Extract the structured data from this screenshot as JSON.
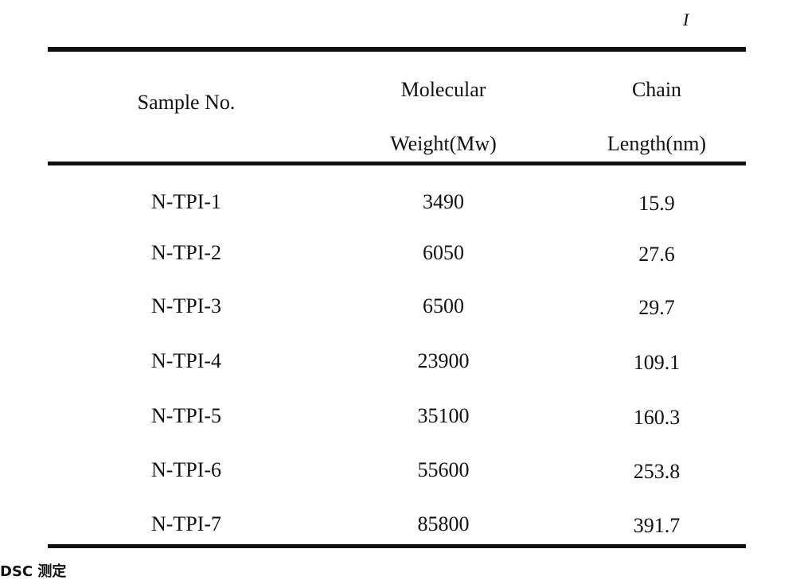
{
  "page_mark": "I",
  "table": {
    "headers": {
      "sample": "Sample No.",
      "mw_line1": "Molecular",
      "mw_line2": "Weight(Mw)",
      "cl_line1": "Chain",
      "cl_line2": "Length(nm)"
    },
    "rows": [
      {
        "sample": "N-TPI-1",
        "mw": "3490",
        "length": "15.9"
      },
      {
        "sample": "N-TPI-2",
        "mw": "6050",
        "length": "27.6"
      },
      {
        "sample": "N-TPI-3",
        "mw": "6500",
        "length": "29.7"
      },
      {
        "sample": "N-TPI-4",
        "mw": "23900",
        "length": "109.1"
      },
      {
        "sample": "N-TPI-5",
        "mw": "35100",
        "length": "160.3"
      },
      {
        "sample": "N-TPI-6",
        "mw": "55600",
        "length": "253.8"
      },
      {
        "sample": "N-TPI-7",
        "mw": "85800",
        "length": "391.7"
      }
    ]
  },
  "footer_fragment": "DSC 测定"
}
